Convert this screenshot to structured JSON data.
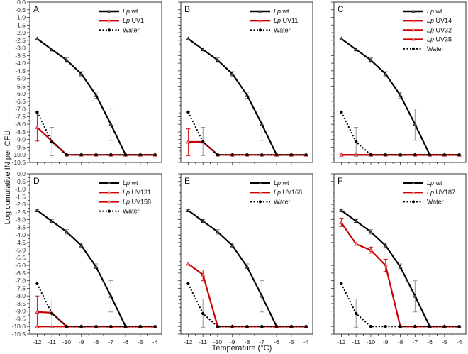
{
  "chart_data": {
    "type": "line",
    "xlabel": "Temperature (°C)",
    "ylabel": "Log cumulative IN per CFU",
    "xlim": [
      -12.5,
      -3.55
    ],
    "ylim": [
      -10.5,
      0
    ],
    "xticks": [
      -12,
      -11,
      -10,
      -9,
      -8,
      -7,
      -6,
      -5,
      -4
    ],
    "yticks": [
      "0.0",
      "-0.5",
      "-1.0",
      "-1.5",
      "-2.0",
      "-2.5",
      "-3.0",
      "-3.5",
      "-4.0",
      "-4.5",
      "-5.0",
      "-5.5",
      "-6.0",
      "-6.5",
      "-7.0",
      "-7.5",
      "-8.0",
      "-8.5",
      "-9.0",
      "-9.5",
      "-10.0",
      "-10.5"
    ],
    "grid": false,
    "legend_position": "top-right",
    "colors": {
      "wt": "#000000",
      "mutant": "#cc0000",
      "water": "#000000",
      "err_dark": "#888888",
      "err_red": "#cc0000"
    },
    "panels": [
      {
        "letter": "A",
        "series": [
          {
            "name": "Lp wt",
            "italic": "Lp",
            "label": "wt",
            "kind": "wt",
            "x": [
              -12,
              -11,
              -10,
              -9,
              -8,
              -7,
              -6,
              -5,
              -4
            ],
            "y": [
              -2.4,
              -3.1,
              -3.8,
              -4.7,
              -6.1,
              -8.0,
              -10,
              -10,
              -10
            ],
            "err": [
              [
                -2.35,
                -2.45
              ],
              [
                -3.0,
                -3.2
              ],
              [
                -3.65,
                -3.95
              ],
              [
                -4.55,
                -4.85
              ],
              [
                -5.9,
                -6.3
              ],
              [
                -7.0,
                -9.05
              ],
              null,
              null,
              null
            ]
          },
          {
            "name": "Lp UV1",
            "italic": "Lp",
            "label": "UV1",
            "kind": "mutant",
            "x": [
              -12,
              -11,
              -10,
              -9,
              -8,
              -7,
              -6,
              -5,
              -4
            ],
            "y": [
              -8.2,
              -9.1,
              -10,
              -10,
              -10,
              -10,
              -10,
              -10,
              -10
            ],
            "err": [
              [
                -7.3,
                -9.1
              ],
              null,
              null,
              null,
              null,
              null,
              null,
              null,
              null
            ]
          },
          {
            "name": "Water",
            "italic": "",
            "label": "Water",
            "kind": "water",
            "x": [
              -12,
              -11,
              -10,
              -9,
              -8,
              -7,
              -6,
              -5,
              -4
            ],
            "y": [
              -7.2,
              -9.15,
              -10,
              -10,
              -10,
              -10,
              -10,
              -10,
              -10
            ],
            "err": [
              null,
              [
                -8.2,
                -10.05
              ],
              null,
              null,
              null,
              null,
              null,
              null,
              null
            ]
          }
        ]
      },
      {
        "letter": "B",
        "series": [
          {
            "name": "Lp wt",
            "italic": "Lp",
            "label": "wt",
            "kind": "wt",
            "x": [
              -12,
              -11,
              -10,
              -9,
              -8,
              -7,
              -6,
              -5,
              -4
            ],
            "y": [
              -2.4,
              -3.1,
              -3.8,
              -4.7,
              -6.1,
              -8.0,
              -10,
              -10,
              -10
            ],
            "err": [
              [
                -2.35,
                -2.45
              ],
              [
                -3.0,
                -3.2
              ],
              [
                -3.65,
                -3.95
              ],
              [
                -4.55,
                -4.85
              ],
              [
                -5.9,
                -6.3
              ],
              [
                -7.0,
                -9.05
              ],
              null,
              null,
              null
            ]
          },
          {
            "name": "Lp UV11",
            "italic": "Lp",
            "label": "UV11",
            "kind": "mutant",
            "x": [
              -12,
              -11,
              -10,
              -9,
              -8,
              -7,
              -6,
              -5,
              -4
            ],
            "y": [
              -9.15,
              -9.15,
              -10,
              -10,
              -10,
              -10,
              -10,
              -10,
              -10
            ],
            "err": [
              [
                -8.3,
                -10.05
              ],
              null,
              null,
              null,
              null,
              null,
              null,
              null,
              null
            ]
          },
          {
            "name": "Water",
            "italic": "",
            "label": "Water",
            "kind": "water",
            "x": [
              -12,
              -11,
              -10,
              -9,
              -8,
              -7,
              -6,
              -5,
              -4
            ],
            "y": [
              -7.2,
              -9.15,
              -10,
              -10,
              -10,
              -10,
              -10,
              -10,
              -10
            ],
            "err": [
              null,
              [
                -8.2,
                -10.05
              ],
              null,
              null,
              null,
              null,
              null,
              null,
              null
            ]
          }
        ]
      },
      {
        "letter": "C",
        "series": [
          {
            "name": "Lp wt",
            "italic": "Lp",
            "label": "wt",
            "kind": "wt",
            "x": [
              -12,
              -11,
              -10,
              -9,
              -8,
              -7,
              -6,
              -5,
              -4
            ],
            "y": [
              -2.4,
              -3.1,
              -3.8,
              -4.7,
              -6.1,
              -8.0,
              -10,
              -10,
              -10
            ],
            "err": [
              [
                -2.35,
                -2.45
              ],
              [
                -3.0,
                -3.2
              ],
              [
                -3.65,
                -3.95
              ],
              [
                -4.55,
                -4.85
              ],
              [
                -5.9,
                -6.3
              ],
              [
                -7.0,
                -9.05
              ],
              null,
              null,
              null
            ]
          },
          {
            "name": "Lp UV14",
            "italic": "Lp",
            "label": "UV14",
            "kind": "mutant",
            "x": [
              -12,
              -11,
              -10,
              -9,
              -8,
              -7,
              -6,
              -5,
              -4
            ],
            "y": [
              -10,
              -10,
              -10,
              -10,
              -10,
              -10,
              -10,
              -10,
              -10
            ],
            "err": []
          },
          {
            "name": "Lp UV32",
            "italic": "Lp",
            "label": "UV32",
            "kind": "mutant",
            "x": [
              -12,
              -11,
              -10,
              -9,
              -8,
              -7,
              -6,
              -5,
              -4
            ],
            "y": [
              -10,
              -10,
              -10,
              -10,
              -10,
              -10,
              -10,
              -10,
              -10
            ],
            "err": []
          },
          {
            "name": "Lp UV35",
            "italic": "Lp",
            "label": "UV35",
            "kind": "mutant",
            "x": [
              -12,
              -11,
              -10,
              -9,
              -8,
              -7,
              -6,
              -5,
              -4
            ],
            "y": [
              -10,
              -10,
              -10,
              -10,
              -10,
              -10,
              -10,
              -10,
              -10
            ],
            "err": []
          },
          {
            "name": "Water",
            "italic": "",
            "label": "Water",
            "kind": "water",
            "x": [
              -12,
              -11,
              -10,
              -9,
              -8,
              -7,
              -6,
              -5,
              -4
            ],
            "y": [
              -7.2,
              -9.15,
              -10,
              -10,
              -10,
              -10,
              -10,
              -10,
              -10
            ],
            "err": [
              null,
              [
                -8.2,
                -10.05
              ],
              null,
              null,
              null,
              null,
              null,
              null,
              null
            ]
          }
        ]
      },
      {
        "letter": "D",
        "series": [
          {
            "name": "Lp wt",
            "italic": "Lp",
            "label": "wt",
            "kind": "wt",
            "x": [
              -12,
              -11,
              -10,
              -9,
              -8,
              -7,
              -6,
              -5,
              -4
            ],
            "y": [
              -2.4,
              -3.1,
              -3.8,
              -4.7,
              -6.1,
              -8.0,
              -10,
              -10,
              -10
            ],
            "err": [
              [
                -2.35,
                -2.45
              ],
              [
                -3.0,
                -3.2
              ],
              [
                -3.65,
                -3.95
              ],
              [
                -4.55,
                -4.85
              ],
              [
                -5.9,
                -6.3
              ],
              [
                -7.0,
                -9.05
              ],
              null,
              null,
              null
            ]
          },
          {
            "name": "Lp UV131",
            "italic": "Lp",
            "label": "UV131",
            "kind": "mutant",
            "x": [
              -12,
              -11,
              -10,
              -9,
              -8,
              -7,
              -6,
              -5,
              -4
            ],
            "y": [
              -9.05,
              -9.1,
              -10,
              -10,
              -10,
              -10,
              -10,
              -10,
              -10
            ],
            "err": [
              [
                -8.0,
                -10.05
              ],
              null,
              null,
              null,
              null,
              null,
              null,
              null,
              null
            ]
          },
          {
            "name": "Lp UV158",
            "italic": "Lp",
            "label": "UV158",
            "kind": "mutant",
            "x": [
              -12,
              -11,
              -10,
              -9,
              -8,
              -7,
              -6,
              -5,
              -4
            ],
            "y": [
              -10,
              -10,
              -10,
              -10,
              -10,
              -10,
              -10,
              -10,
              -10
            ],
            "err": []
          },
          {
            "name": "Water",
            "italic": "",
            "label": "Water",
            "kind": "water",
            "x": [
              -12,
              -11,
              -10,
              -9,
              -8,
              -7,
              -6,
              -5,
              -4
            ],
            "y": [
              -7.2,
              -9.15,
              -10,
              -10,
              -10,
              -10,
              -10,
              -10,
              -10
            ],
            "err": [
              null,
              [
                -8.2,
                -10.05
              ],
              null,
              null,
              null,
              null,
              null,
              null,
              null
            ]
          }
        ]
      },
      {
        "letter": "E",
        "series": [
          {
            "name": "Lp wt",
            "italic": "Lp",
            "label": "wt",
            "kind": "wt",
            "x": [
              -12,
              -11,
              -10,
              -9,
              -8,
              -7,
              -6,
              -5,
              -4
            ],
            "y": [
              -2.4,
              -3.1,
              -3.8,
              -4.7,
              -6.1,
              -8.0,
              -10,
              -10,
              -10
            ],
            "err": [
              [
                -2.35,
                -2.45
              ],
              [
                -3.0,
                -3.2
              ],
              [
                -3.65,
                -3.95
              ],
              [
                -4.55,
                -4.85
              ],
              [
                -5.9,
                -6.3
              ],
              [
                -7.0,
                -9.05
              ],
              null,
              null,
              null
            ]
          },
          {
            "name": "Lp UV168",
            "italic": "Lp",
            "label": "UV168",
            "kind": "mutant",
            "x": [
              -12,
              -11,
              -10,
              -9,
              -8,
              -7,
              -6,
              -5,
              -4
            ],
            "y": [
              -5.9,
              -6.6,
              -10,
              -10,
              -10,
              -10,
              -10,
              -10,
              -10
            ],
            "err": [
              null,
              [
                -6.3,
                -7.0
              ],
              null,
              null,
              null,
              null,
              null,
              null,
              null
            ]
          },
          {
            "name": "Water",
            "italic": "",
            "label": "Water",
            "kind": "water",
            "x": [
              -12,
              -11,
              -10,
              -9,
              -8,
              -7,
              -6,
              -5,
              -4
            ],
            "y": [
              -7.2,
              -9.15,
              -10,
              -10,
              -10,
              -10,
              -10,
              -10,
              -10
            ],
            "err": [
              null,
              [
                -8.2,
                -10.05
              ],
              null,
              null,
              null,
              null,
              null,
              null,
              null
            ]
          }
        ]
      },
      {
        "letter": "F",
        "series": [
          {
            "name": "Lp wt",
            "italic": "Lp",
            "label": "wt",
            "kind": "wt",
            "x": [
              -12,
              -11,
              -10,
              -9,
              -8,
              -7,
              -6,
              -5,
              -4
            ],
            "y": [
              -2.4,
              -3.1,
              -3.8,
              -4.7,
              -6.1,
              -8.0,
              -10,
              -10,
              -10
            ],
            "err": [
              [
                -2.35,
                -2.45
              ],
              [
                -3.0,
                -3.2
              ],
              [
                -3.65,
                -3.95
              ],
              [
                -4.55,
                -4.85
              ],
              [
                -5.9,
                -6.3
              ],
              [
                -7.0,
                -9.05
              ],
              null,
              null,
              null
            ]
          },
          {
            "name": "Lp UV187",
            "italic": "Lp",
            "label": "UV187",
            "kind": "mutant",
            "x": [
              -12,
              -11,
              -10,
              -9,
              -8,
              -7,
              -6,
              -5,
              -4
            ],
            "y": [
              -3.2,
              -4.6,
              -5.0,
              -6.0,
              -10,
              -10,
              -10,
              -10,
              -10
            ],
            "err": [
              [
                -2.9,
                -3.45
              ],
              null,
              [
                -4.8,
                -5.2
              ],
              [
                -5.6,
                -6.4
              ],
              null,
              null,
              null,
              null,
              null
            ]
          },
          {
            "name": "Water",
            "italic": "",
            "label": "Water",
            "kind": "water",
            "x": [
              -12,
              -11,
              -10,
              -9,
              -8,
              -7,
              -6,
              -5,
              -4
            ],
            "y": [
              -7.2,
              -9.15,
              -10,
              -10,
              -10,
              -10,
              -10,
              -10,
              -10
            ],
            "err": [
              null,
              [
                -8.2,
                -10.05
              ],
              null,
              null,
              null,
              null,
              null,
              null,
              null
            ]
          }
        ]
      }
    ]
  }
}
